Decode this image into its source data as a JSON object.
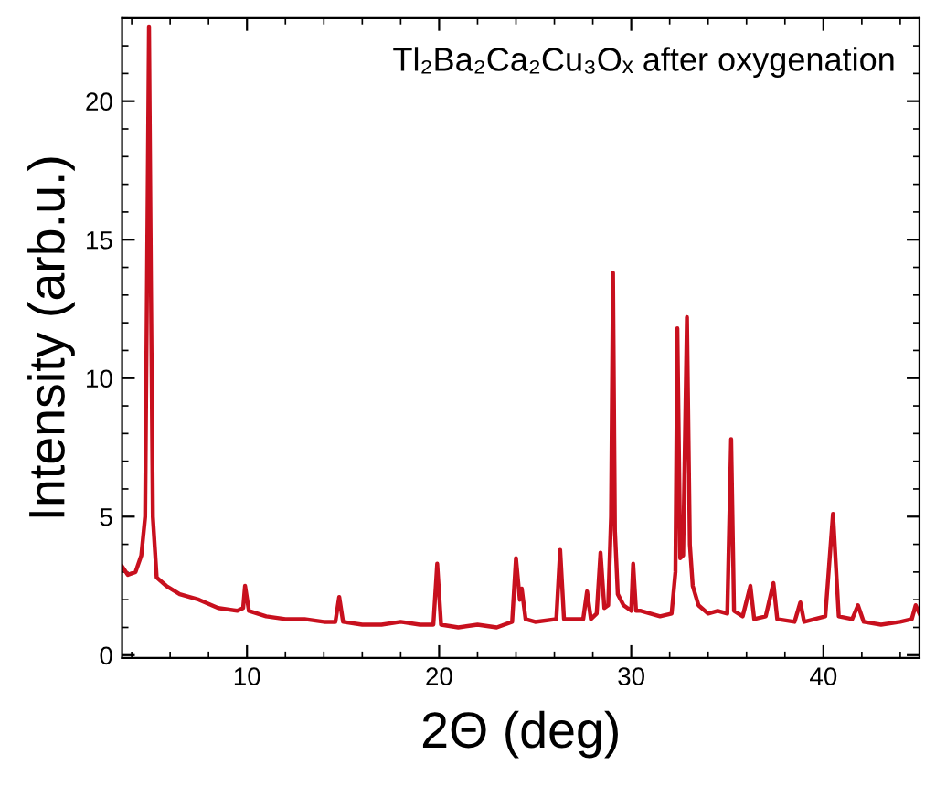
{
  "chart_data": {
    "type": "line",
    "xlabel": "2Θ (deg)",
    "ylabel": "Intensity (arb.u.)",
    "annotations": [
      "Tl₂Ba₂Ca₂Cu₃Oₓ after oxygenation"
    ],
    "xlim": [
      3.5,
      45
    ],
    "ylim": [
      -0.1,
      23
    ],
    "xticks": [
      10,
      20,
      30,
      40
    ],
    "yticks": [
      0,
      5,
      10,
      15,
      20
    ],
    "grid": false,
    "legend": false,
    "marker": "none",
    "line_style": "solid",
    "series": [
      {
        "color": "#c8101e",
        "x": [
          3.5,
          3.8,
          4.2,
          4.5,
          4.7,
          4.8,
          4.9,
          5.0,
          5.1,
          5.3,
          5.8,
          6.5,
          7.5,
          8.5,
          9.5,
          9.8,
          9.9,
          10.1,
          11,
          12,
          13,
          14,
          14.6,
          14.8,
          15.0,
          16,
          17,
          18,
          19,
          19.7,
          19.9,
          20.1,
          21,
          22,
          23,
          23.8,
          24.0,
          24.2,
          24.3,
          24.5,
          25,
          26.1,
          26.3,
          26.5,
          27.5,
          27.7,
          27.9,
          28.2,
          28.4,
          28.6,
          28.8,
          28.95,
          29.05,
          29.15,
          29.3,
          29.6,
          30.0,
          30.1,
          30.25,
          30.5,
          31,
          31.5,
          32.1,
          32.3,
          32.4,
          32.55,
          32.7,
          32.9,
          33.05,
          33.2,
          33.5,
          34,
          34.5,
          35.0,
          35.2,
          35.35,
          35.8,
          36.2,
          36.4,
          37,
          37.4,
          37.6,
          38.5,
          38.8,
          39.0,
          40.1,
          40.5,
          40.8,
          41.5,
          41.8,
          42.1,
          43,
          44,
          44.6,
          44.8,
          45
        ],
        "values": [
          3.2,
          2.9,
          3.0,
          3.6,
          5.0,
          13.7,
          22.7,
          13.5,
          5,
          2.8,
          2.5,
          2.2,
          2.0,
          1.7,
          1.6,
          1.7,
          2.5,
          1.6,
          1.4,
          1.3,
          1.3,
          1.2,
          1.2,
          2.1,
          1.2,
          1.1,
          1.1,
          1.2,
          1.1,
          1.1,
          3.3,
          1.1,
          1.0,
          1.1,
          1.0,
          1.2,
          3.5,
          2.0,
          2.4,
          1.3,
          1.2,
          1.3,
          3.8,
          1.3,
          1.3,
          2.3,
          1.3,
          1.5,
          3.7,
          1.7,
          1.8,
          5.0,
          13.8,
          4.5,
          2.2,
          1.8,
          1.6,
          3.3,
          1.6,
          1.6,
          1.5,
          1.4,
          1.5,
          3,
          11.8,
          3.5,
          3.6,
          12.2,
          4,
          2.5,
          1.8,
          1.5,
          1.6,
          1.5,
          7.8,
          1.6,
          1.4,
          2.5,
          1.3,
          1.4,
          2.6,
          1.3,
          1.2,
          1.9,
          1.2,
          1.4,
          5.1,
          1.4,
          1.3,
          1.8,
          1.2,
          1.1,
          1.2,
          1.3,
          1.8,
          1.5
        ]
      }
    ]
  }
}
